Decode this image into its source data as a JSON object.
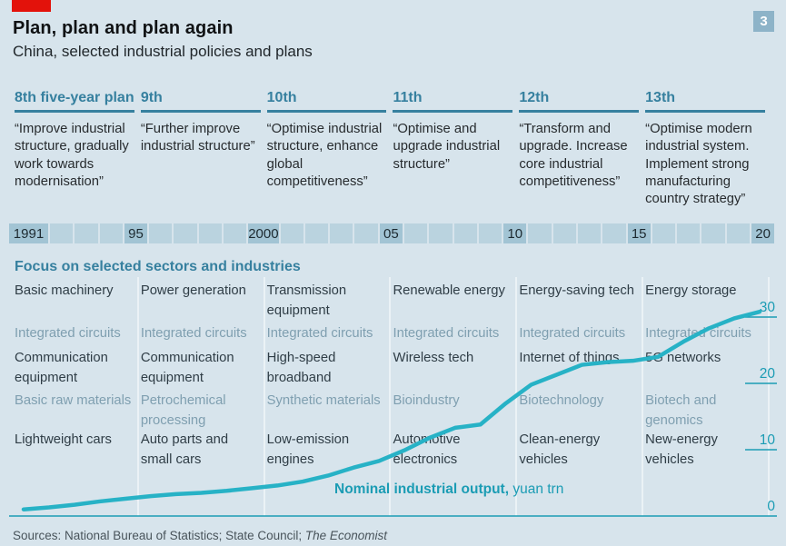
{
  "header": {
    "title": "Plan, plan and plan again",
    "subtitle": "China, selected industrial policies and plans",
    "badge": "3"
  },
  "plans": [
    {
      "label": "8th five-year plan",
      "quote": "“Improve industrial structure, gradually work towards modernisation”"
    },
    {
      "label": "9th",
      "quote": "“Further improve industrial structure”"
    },
    {
      "label": "10th",
      "quote": "“Optimise industrial structure, enhance global competitiveness”"
    },
    {
      "label": "11th",
      "quote": "“Optimise and upgrade industrial structure”"
    },
    {
      "label": "12th",
      "quote": "“Transform and upgrade. Increase core industrial competitiveness”"
    },
    {
      "label": "13th",
      "quote": "“Optimise modern industrial system. Implement strong manufacturing country strategy”"
    }
  ],
  "timeline": {
    "start_year": 1991,
    "end_year": 2020,
    "cell_count": 30,
    "labels": {
      "0": "1991",
      "4": "95",
      "9": "2000",
      "14": "05",
      "19": "10",
      "24": "15",
      "29": "20"
    }
  },
  "sectors": {
    "heading": "Focus on selected sectors and industries",
    "rows": [
      {
        "muted": false,
        "cells": [
          "Basic machinery",
          "Power generation",
          "Transmission equipment",
          "Renewable energy",
          "Energy-saving tech",
          "Energy storage"
        ]
      },
      {
        "muted": true,
        "cells": [
          "Integrated circuits",
          "Integrated circuits",
          "Integrated circuits",
          "Integrated circuits",
          "Integrated circuits",
          "Integrated circuits"
        ]
      },
      {
        "muted": false,
        "cells": [
          "Communication equipment",
          "Communication equipment",
          "High-speed broadband",
          "Wireless tech",
          "Internet of things",
          "5G networks"
        ]
      },
      {
        "muted": true,
        "cells": [
          "Basic raw materials",
          "Petrochemical processing",
          "Synthetic materials",
          "Bioindustry",
          "Biotechnology",
          "Biotech and genomics"
        ]
      },
      {
        "muted": false,
        "cells": [
          "Lightweight cars",
          "Auto parts and small cars",
          "Low-emission engines",
          "Automotive electronics",
          "Clean-energy vehicles",
          "New-energy vehicles"
        ]
      }
    ]
  },
  "chart_data": {
    "type": "line",
    "title": "Nominal industrial output",
    "title_bold": "Nominal industrial output,",
    "title_unit": " yuan trn",
    "x": [
      1991,
      1992,
      1993,
      1994,
      1995,
      1996,
      1997,
      1998,
      1999,
      2000,
      2001,
      2002,
      2003,
      2004,
      2005,
      2006,
      2007,
      2008,
      2009,
      2010,
      2011,
      2012,
      2013,
      2014,
      2015,
      2016,
      2017,
      2018,
      2019,
      2020
    ],
    "values": [
      1.0,
      1.3,
      1.7,
      2.2,
      2.6,
      3.0,
      3.3,
      3.5,
      3.8,
      4.2,
      4.6,
      5.2,
      6.1,
      7.3,
      8.3,
      9.9,
      11.8,
      13.3,
      13.8,
      17.0,
      19.8,
      21.3,
      22.8,
      23.2,
      23.4,
      24.0,
      26.3,
      28.3,
      29.8,
      30.8
    ],
    "ylim": [
      0,
      32
    ],
    "yticks": [
      0,
      10,
      20,
      30
    ],
    "xtick_labels": [
      "1991",
      "95",
      "2000",
      "05",
      "10",
      "15",
      "20"
    ],
    "legend_position": "right-axis",
    "grid": false
  },
  "footer": {
    "sources_prefix": "Sources: National Bureau of Statistics; State Council; ",
    "sources_italic": "The Economist"
  },
  "colors": {
    "background": "#d7e4ec",
    "accent_red": "#e3120b",
    "heading_blue": "#36809f",
    "muted_text": "#7f9fb0",
    "dark_text": "#2f3d46",
    "line_teal": "#27b2c6",
    "axis_teal": "#1b9cb4",
    "timeline_cell": "#bad3df",
    "timeline_cell_dark": "#a2c4d4",
    "badge_bg": "#8db3c8"
  }
}
